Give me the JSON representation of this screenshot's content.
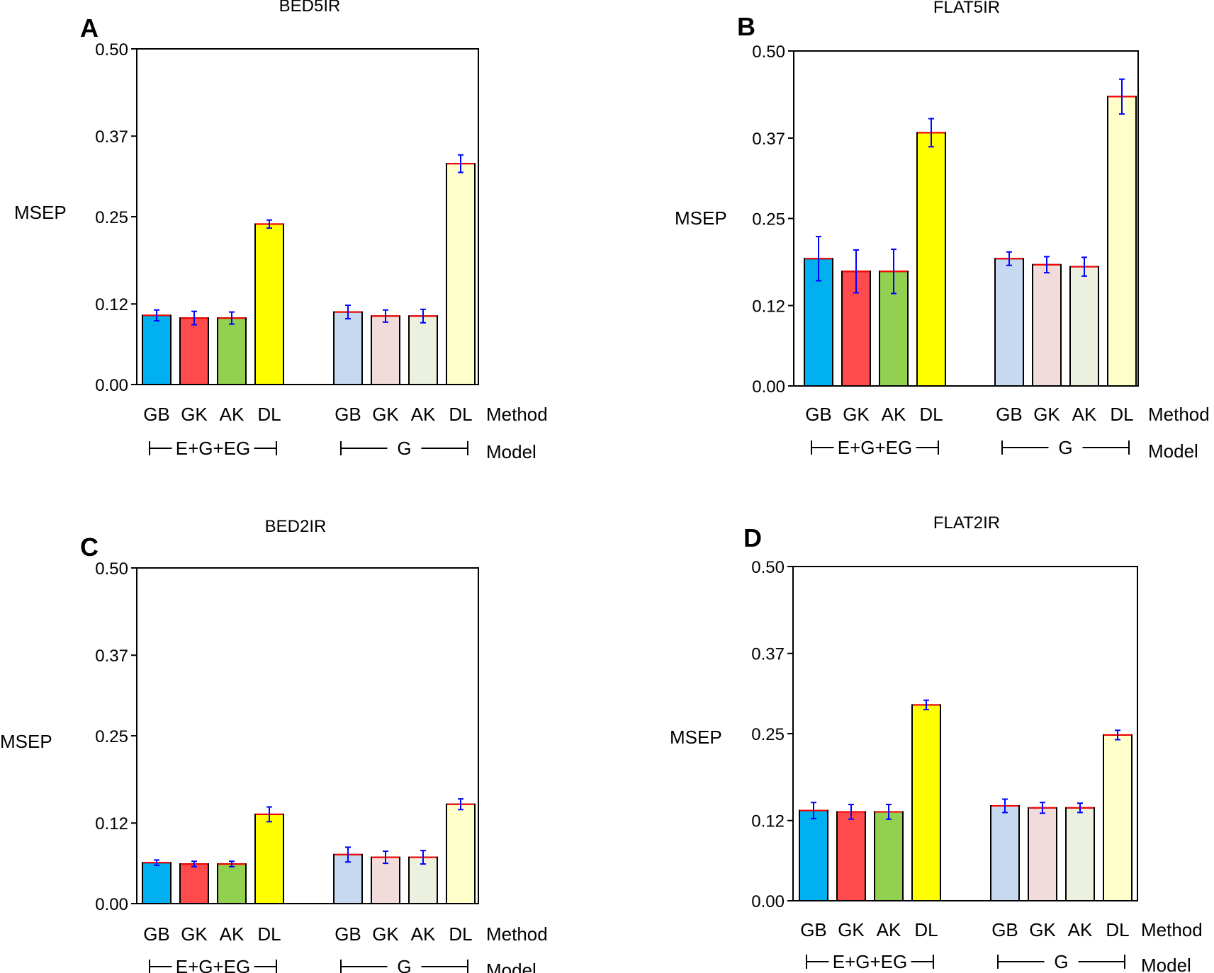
{
  "chart_data": [
    {
      "type": "bar",
      "panel": "A",
      "title": "BED5IR",
      "ylabel": "MSEP",
      "ylim": [
        0,
        0.5
      ],
      "yticks": [
        "0.00",
        "0.12",
        "0.25",
        "0.37",
        "0.50"
      ],
      "method_label": "Method",
      "model_label": "Model",
      "groups": [
        {
          "model": "E+G+EG",
          "bars": [
            {
              "method": "GB",
              "value": 0.103,
              "err": 0.008
            },
            {
              "method": "GK",
              "value": 0.099,
              "err": 0.01
            },
            {
              "method": "AK",
              "value": 0.099,
              "err": 0.009
            },
            {
              "method": "DL",
              "value": 0.239,
              "err": 0.006
            }
          ]
        },
        {
          "model": "G",
          "bars": [
            {
              "method": "GB",
              "value": 0.108,
              "err": 0.01
            },
            {
              "method": "GK",
              "value": 0.102,
              "err": 0.009
            },
            {
              "method": "AK",
              "value": 0.102,
              "err": 0.01
            },
            {
              "method": "DL",
              "value": 0.329,
              "err": 0.013
            }
          ]
        }
      ]
    },
    {
      "type": "bar",
      "panel": "B",
      "title": "FLAT5IR",
      "ylabel": "MSEP",
      "ylim": [
        0,
        0.5
      ],
      "yticks": [
        "0.00",
        "0.12",
        "0.25",
        "0.37",
        "0.50"
      ],
      "method_label": "Method",
      "model_label": "Model",
      "groups": [
        {
          "model": "E+G+EG",
          "bars": [
            {
              "method": "GB",
              "value": 0.19,
              "err": 0.033
            },
            {
              "method": "GK",
              "value": 0.171,
              "err": 0.032
            },
            {
              "method": "AK",
              "value": 0.171,
              "err": 0.033
            },
            {
              "method": "DL",
              "value": 0.378,
              "err": 0.021
            }
          ]
        },
        {
          "model": "G",
          "bars": [
            {
              "method": "GB",
              "value": 0.19,
              "err": 0.01
            },
            {
              "method": "GK",
              "value": 0.181,
              "err": 0.012
            },
            {
              "method": "AK",
              "value": 0.178,
              "err": 0.014
            },
            {
              "method": "DL",
              "value": 0.432,
              "err": 0.026
            }
          ]
        }
      ]
    },
    {
      "type": "bar",
      "panel": "C",
      "title": "BED2IR",
      "ylabel": "MSEP",
      "ylim": [
        0,
        0.5
      ],
      "yticks": [
        "0.00",
        "0.12",
        "0.25",
        "0.37",
        "0.50"
      ],
      "method_label": "Method",
      "model_label": "Model",
      "groups": [
        {
          "model": "E+G+EG",
          "bars": [
            {
              "method": "GB",
              "value": 0.061,
              "err": 0.004
            },
            {
              "method": "GK",
              "value": 0.059,
              "err": 0.004
            },
            {
              "method": "AK",
              "value": 0.059,
              "err": 0.004
            },
            {
              "method": "DL",
              "value": 0.133,
              "err": 0.011
            }
          ]
        },
        {
          "model": "G",
          "bars": [
            {
              "method": "GB",
              "value": 0.073,
              "err": 0.011
            },
            {
              "method": "GK",
              "value": 0.069,
              "err": 0.009
            },
            {
              "method": "AK",
              "value": 0.069,
              "err": 0.01
            },
            {
              "method": "DL",
              "value": 0.148,
              "err": 0.008
            }
          ]
        }
      ]
    },
    {
      "type": "bar",
      "panel": "D",
      "title": "FLAT2IR",
      "ylabel": "MSEP",
      "ylim": [
        0,
        0.5
      ],
      "yticks": [
        "0.00",
        "0.12",
        "0.25",
        "0.37",
        "0.50"
      ],
      "method_label": "Method",
      "model_label": "Model",
      "groups": [
        {
          "model": "E+G+EG",
          "bars": [
            {
              "method": "GB",
              "value": 0.135,
              "err": 0.012
            },
            {
              "method": "GK",
              "value": 0.133,
              "err": 0.011
            },
            {
              "method": "AK",
              "value": 0.133,
              "err": 0.011
            },
            {
              "method": "DL",
              "value": 0.293,
              "err": 0.007
            }
          ]
        },
        {
          "model": "G",
          "bars": [
            {
              "method": "GB",
              "value": 0.142,
              "err": 0.01
            },
            {
              "method": "GK",
              "value": 0.139,
              "err": 0.008
            },
            {
              "method": "AK",
              "value": 0.139,
              "err": 0.007
            },
            {
              "method": "DL",
              "value": 0.248,
              "err": 0.007
            }
          ]
        }
      ]
    }
  ],
  "colors": {
    "group1": [
      "#00b0f0",
      "#ff4b4b",
      "#92d050",
      "#ffff00"
    ],
    "group2": [
      "#c6d9f0",
      "#f2dcdb",
      "#ebf1de",
      "#ffffcc"
    ],
    "error_bar": "#0000ff",
    "mean_line": "#ff0000"
  }
}
